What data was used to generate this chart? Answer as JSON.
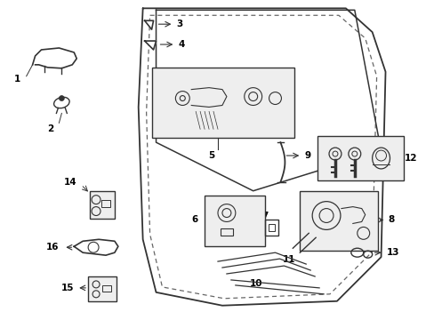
{
  "bg_color": "#ffffff",
  "line_color": "#333333",
  "box_fill": "#eeeeee",
  "dashed_color": "#666666",
  "fs": 7.5,
  "figsize": [
    4.89,
    3.6
  ],
  "dpi": 100
}
